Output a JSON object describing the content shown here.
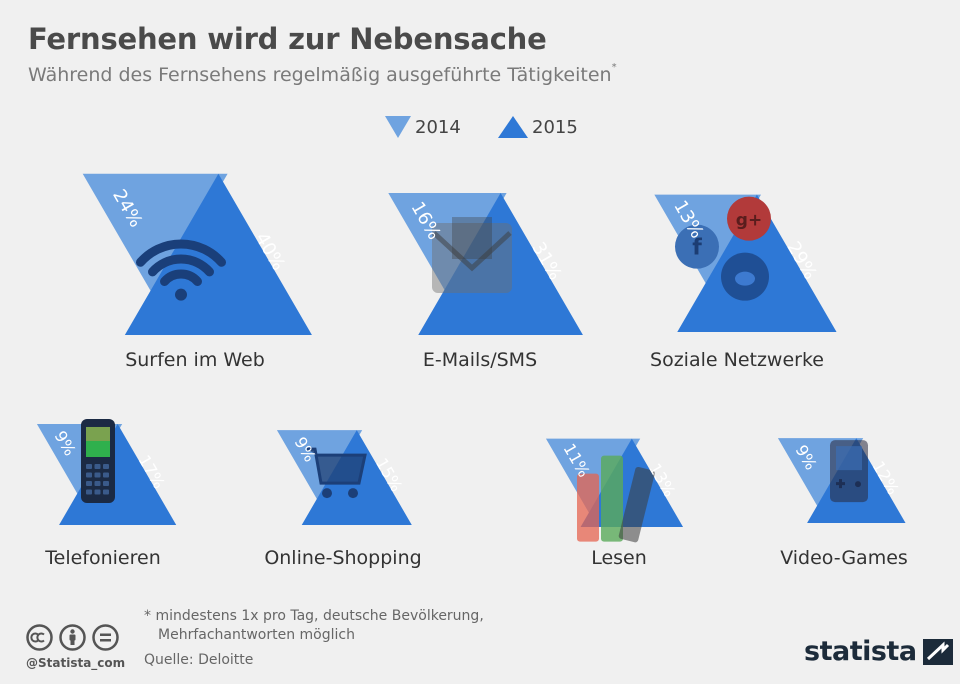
{
  "header": {
    "title": "Fernsehen wird zur Nebensache",
    "subtitle": "Während des Fernsehens regelmäßig ausgeführte Tätigkeiten",
    "subtitle_mark": "*"
  },
  "legend": {
    "items": [
      {
        "label": "2014",
        "color": "#6fa3e0",
        "shape": "triangle-down"
      },
      {
        "label": "2015",
        "color": "#2e78d6",
        "shape": "triangle-up"
      }
    ]
  },
  "chart_data": {
    "type": "bar",
    "categories": [
      "Surfen im Web",
      "E-Mails/SMS",
      "Soziale Netzwerke",
      "Telefonieren",
      "Online-Shopping",
      "Lesen",
      "Video-Games"
    ],
    "series": [
      {
        "name": "2014",
        "values": [
          24,
          16,
          13,
          9,
          9,
          11,
          9
        ],
        "labels": [
          "24%",
          "16%",
          "13%",
          "9%",
          "9%",
          "11%",
          "9%"
        ]
      },
      {
        "name": "2015",
        "values": [
          40,
          31,
          29,
          17,
          15,
          13,
          12
        ],
        "labels": [
          "40%",
          "31%",
          "29%",
          "17%",
          "15%",
          "13%",
          "12%"
        ]
      }
    ],
    "icons": [
      "wifi-icon",
      "envelope-icon",
      "social-network-icons",
      "mobile-phone-icon",
      "shopping-cart-icon",
      "books-icon",
      "gameboy-icon"
    ],
    "colors": {
      "2014": "#6fa3e0",
      "2015": "#2e78d6"
    },
    "unit": "%"
  },
  "footer": {
    "footnote_line1": "* mindestens 1x pro Tag, deutsche Bevölkerung,",
    "footnote_line2": "Mehrfachantworten möglich",
    "source": "Quelle: Deloitte",
    "handle": "@Statista_com",
    "brand": "statista",
    "cc_icons": [
      "cc-icon",
      "by-icon",
      "nd-icon"
    ]
  }
}
